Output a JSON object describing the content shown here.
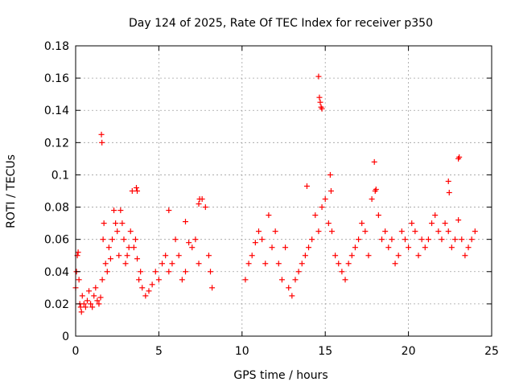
{
  "chart_data": {
    "type": "scatter",
    "title": "Day 124 of 2025, Rate Of TEC Index for receiver p350",
    "xlabel": "GPS time / hours",
    "ylabel": "ROTI / TECUs",
    "xlim": [
      0,
      25
    ],
    "ylim": [
      0,
      0.18
    ],
    "xticks": [
      0,
      5,
      10,
      15,
      20,
      25
    ],
    "yticks": [
      0,
      0.02,
      0.04,
      0.06,
      0.08,
      0.1,
      0.12,
      0.14,
      0.16,
      0.18
    ],
    "grid": true,
    "marker": "+",
    "color": "#ff0000",
    "series": [
      {
        "x": [
          0.0,
          0.05,
          0.1,
          0.15,
          0.2,
          0.25,
          0.3,
          0.35,
          0.4,
          0.5,
          0.6,
          0.7,
          0.8,
          0.9,
          1.0,
          1.1,
          1.2,
          1.3,
          1.4,
          1.5,
          1.6,
          1.65,
          1.7,
          1.8,
          1.9,
          2.0,
          2.1,
          2.2,
          2.3,
          2.4,
          2.5,
          2.6,
          2.7,
          2.8,
          2.9,
          3.0,
          3.1,
          3.2,
          3.3,
          3.4,
          3.5,
          3.6,
          3.7,
          3.8,
          3.9,
          4.0,
          4.2,
          4.4,
          4.6,
          4.8,
          5.0,
          5.2,
          5.4,
          5.6,
          5.8,
          6.0,
          6.2,
          6.4,
          6.6,
          6.8,
          7.0,
          7.2,
          7.4,
          7.6,
          7.8,
          8.0,
          8.1,
          8.2,
          1.55,
          1.58,
          3.65,
          3.7,
          5.6,
          6.6,
          7.4,
          7.45
        ],
        "y": [
          0.03,
          0.04,
          0.05,
          0.052,
          0.035,
          0.02,
          0.018,
          0.015,
          0.025,
          0.02,
          0.018,
          0.022,
          0.028,
          0.02,
          0.018,
          0.025,
          0.03,
          0.022,
          0.02,
          0.024,
          0.035,
          0.06,
          0.07,
          0.045,
          0.04,
          0.055,
          0.048,
          0.06,
          0.078,
          0.07,
          0.065,
          0.05,
          0.078,
          0.07,
          0.06,
          0.045,
          0.05,
          0.055,
          0.065,
          0.09,
          0.055,
          0.06,
          0.048,
          0.035,
          0.04,
          0.03,
          0.025,
          0.028,
          0.032,
          0.04,
          0.035,
          0.045,
          0.05,
          0.04,
          0.045,
          0.06,
          0.05,
          0.035,
          0.04,
          0.058,
          0.055,
          0.06,
          0.045,
          0.085,
          0.08,
          0.05,
          0.04,
          0.03,
          0.125,
          0.12,
          0.092,
          0.09,
          0.078,
          0.071,
          0.082,
          0.085
        ]
      },
      {
        "x": [
          10.2,
          10.4,
          10.6,
          10.8,
          11.0,
          11.2,
          11.4,
          11.6,
          11.8,
          12.0,
          12.2,
          12.4,
          12.6,
          12.8,
          13.0,
          13.2,
          13.4,
          13.6,
          13.8,
          14.0,
          14.2,
          14.4,
          14.6,
          14.8,
          15.0,
          15.2,
          15.4,
          15.6,
          15.8,
          16.0,
          16.2,
          16.4,
          16.6,
          16.8,
          17.0,
          17.2,
          17.4,
          17.6,
          17.8,
          18.0,
          18.2,
          18.4,
          18.6,
          18.8,
          19.0,
          19.2,
          19.4,
          19.6,
          19.8,
          20.0,
          20.2,
          20.4,
          20.6,
          20.8,
          21.0,
          21.2,
          21.4,
          21.6,
          21.8,
          22.0,
          22.2,
          22.4,
          22.6,
          22.8,
          23.0,
          23.2,
          23.4,
          23.6,
          23.8,
          24.0,
          13.9,
          14.6,
          14.65,
          14.7,
          14.75,
          14.8,
          15.3,
          15.35,
          17.95,
          18.05,
          22.4,
          22.45,
          23.0,
          23.05
        ],
        "y": [
          0.035,
          0.045,
          0.05,
          0.058,
          0.065,
          0.06,
          0.045,
          0.075,
          0.055,
          0.065,
          0.045,
          0.035,
          0.055,
          0.03,
          0.025,
          0.035,
          0.04,
          0.045,
          0.05,
          0.055,
          0.06,
          0.075,
          0.065,
          0.08,
          0.085,
          0.07,
          0.065,
          0.05,
          0.045,
          0.04,
          0.035,
          0.045,
          0.05,
          0.055,
          0.06,
          0.07,
          0.065,
          0.05,
          0.085,
          0.09,
          0.075,
          0.06,
          0.065,
          0.055,
          0.06,
          0.045,
          0.05,
          0.065,
          0.06,
          0.055,
          0.07,
          0.065,
          0.05,
          0.06,
          0.055,
          0.06,
          0.07,
          0.075,
          0.065,
          0.06,
          0.07,
          0.065,
          0.055,
          0.06,
          0.072,
          0.06,
          0.05,
          0.055,
          0.06,
          0.065,
          0.093,
          0.161,
          0.148,
          0.145,
          0.142,
          0.141,
          0.1,
          0.09,
          0.108,
          0.091,
          0.096,
          0.089,
          0.11,
          0.111
        ]
      }
    ]
  }
}
